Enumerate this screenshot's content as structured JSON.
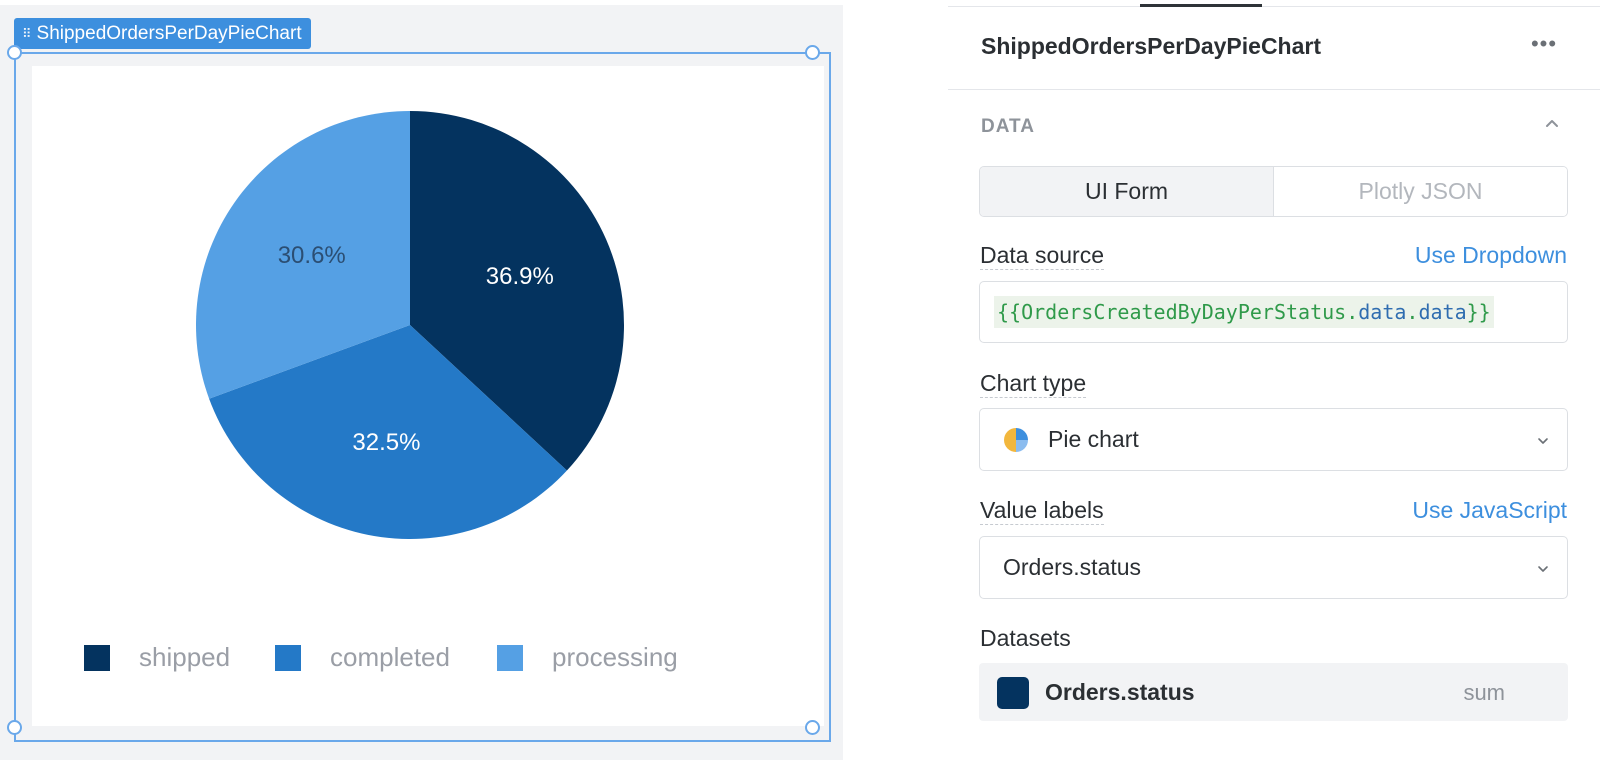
{
  "widget": {
    "tag_label": "ShippedOrdersPerDayPieChart"
  },
  "chart_data": {
    "type": "pie",
    "title": "",
    "categories": [
      "shipped",
      "completed",
      "processing"
    ],
    "values": [
      36.9,
      32.5,
      30.6
    ],
    "labels": [
      "36.9%",
      "32.5%",
      "30.6%"
    ],
    "colors": [
      "#04335f",
      "#2479c7",
      "#55a0e4"
    ],
    "label_colors": [
      "#ffffff",
      "#ffffff",
      "#2b4e73"
    ],
    "legend_position": "bottom",
    "legend": [
      "shipped",
      "completed",
      "processing"
    ]
  },
  "panel": {
    "title": "ShippedOrdersPerDayPieChart",
    "more_icon": "more-dots-icon",
    "section": {
      "title": "DATA",
      "collapse_icon": "chevron-up-icon"
    },
    "mode_tabs": [
      {
        "label": "UI Form",
        "active": true
      },
      {
        "label": "Plotly JSON",
        "active": false
      }
    ],
    "data_source": {
      "label": "Data source",
      "link": "Use Dropdown",
      "open": "{{",
      "query": "OrdersCreatedByDayPerStatus",
      "dot1": ".",
      "prop1": "data",
      "dot2": ".",
      "prop2": "data",
      "close": "}}"
    },
    "chart_type": {
      "label": "Chart type",
      "value": "Pie chart",
      "icon": "pie-chart-icon"
    },
    "value_labels": {
      "label": "Value labels",
      "link": "Use JavaScript",
      "value": "Orders.status"
    },
    "datasets": {
      "label": "Datasets",
      "items": [
        {
          "name": "Orders.status",
          "aggregation": "sum",
          "color": "#04335f"
        }
      ]
    }
  }
}
